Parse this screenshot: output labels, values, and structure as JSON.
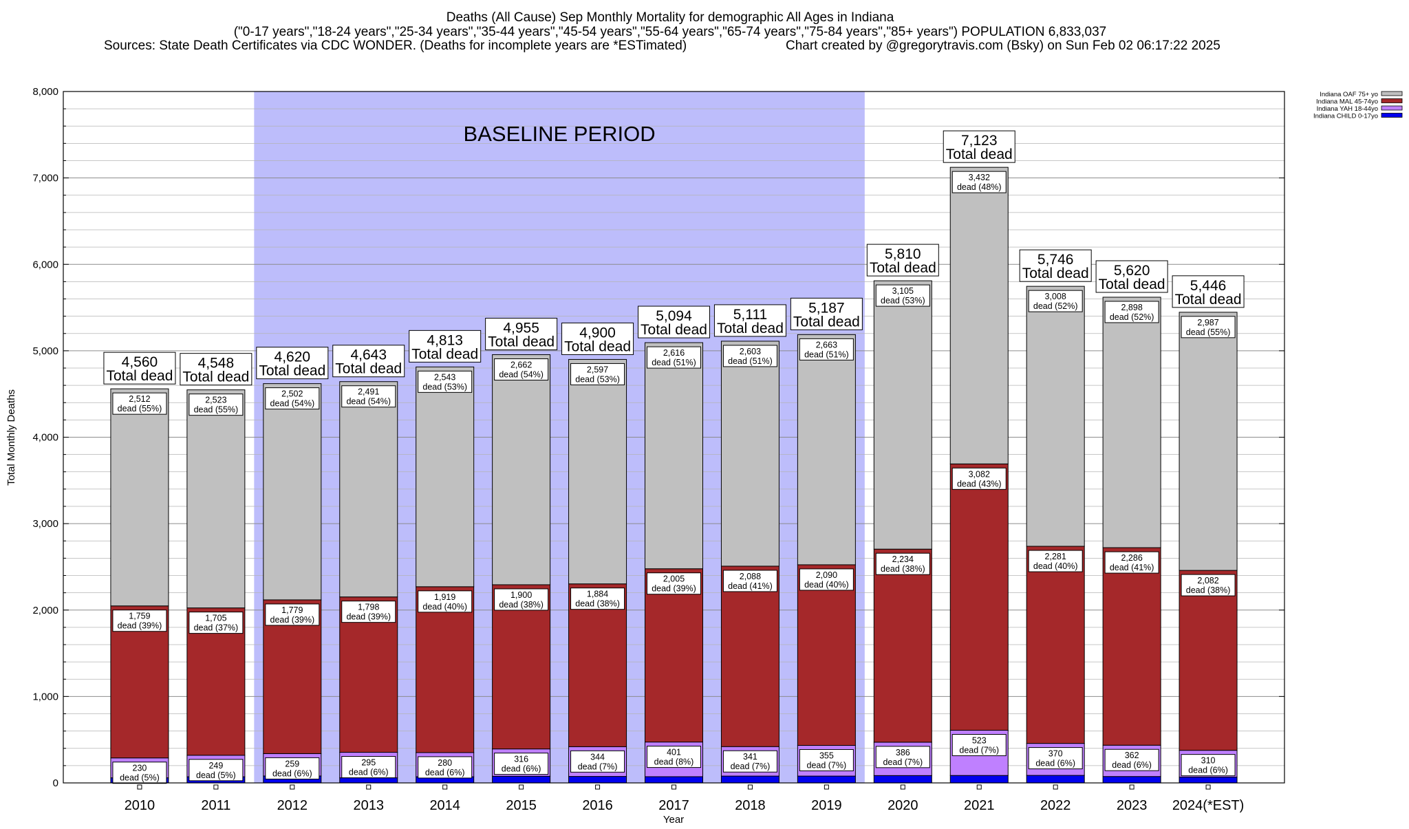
{
  "chart": {
    "title_lines": [
      "Deaths (All Cause) Sep Monthly Mortality for demographic All Ages in Indiana",
      "(\"0-17 years\",\"18-24 years\",\"25-34 years\",\"35-44 years\",\"45-54 years\",\"55-64 years\",\"65-74 years\",\"75-84 years\",\"85+ years\") POPULATION 6,833,037"
    ],
    "sources": "Sources: State Death Certificates via CDC WONDER. (Deaths for incomplete years are *ESTimated)",
    "credit": "Chart created by @gregorytravis.com (Bsky) on Sun Feb 02 06:17:22 2025",
    "baseline_label": "BASELINE PERIOD",
    "total_suffix": "Total dead",
    "dead_word": "dead"
  },
  "chart_data": {
    "type": "bar",
    "stacked": true,
    "xlabel": "Year",
    "ylabel": "Total Monthly Deaths",
    "ylim": [
      0,
      8000
    ],
    "yticks": [
      0,
      1000,
      2000,
      3000,
      4000,
      5000,
      6000,
      7000,
      8000
    ],
    "ytick_labels": [
      "0",
      "1,000",
      "2,000",
      "3,000",
      "4,000",
      "5,000",
      "6,000",
      "7,000",
      "8,000"
    ],
    "grid": true,
    "legend_position": "top-right",
    "baseline_period": [
      "2012",
      "2019"
    ],
    "categories": [
      "2010",
      "2011",
      "2012",
      "2013",
      "2014",
      "2015",
      "2016",
      "2017",
      "2018",
      "2019",
      "2020",
      "2021",
      "2022",
      "2023",
      "2024(*EST)"
    ],
    "totals": [
      4560,
      4548,
      4620,
      4643,
      4813,
      4955,
      4900,
      5094,
      5111,
      5187,
      5810,
      7123,
      5746,
      5620,
      5446
    ],
    "total_labels": [
      "4,560",
      "4,548",
      "4,620",
      "4,643",
      "4,813",
      "4,955",
      "4,900",
      "5,094",
      "5,111",
      "5,187",
      "5,810",
      "7,123",
      "5,746",
      "5,620",
      "5,446"
    ],
    "series": [
      {
        "name": "Indiana CHILD 0-17yo",
        "color": "#0000ee",
        "values": [
          59,
          71,
          80,
          59,
          71,
          77,
          75,
          72,
          79,
          79,
          85,
          86,
          87,
          74,
          67
        ]
      },
      {
        "name": "Indiana YAH 18-44yo",
        "color": "#bf80ff",
        "values": [
          230,
          249,
          259,
          295,
          280,
          316,
          344,
          401,
          341,
          355,
          386,
          523,
          370,
          362,
          310
        ],
        "labels": [
          "230",
          "249",
          "259",
          "295",
          "280",
          "316",
          "344",
          "401",
          "341",
          "355",
          "386",
          "523",
          "370",
          "362",
          "310"
        ],
        "pcts": [
          "(5%)",
          "(5%)",
          "(6%)",
          "(6%)",
          "(6%)",
          "(6%)",
          "(7%)",
          "(8%)",
          "(7%)",
          "(7%)",
          "(7%)",
          "(7%)",
          "(6%)",
          "(6%)",
          "(6%)"
        ]
      },
      {
        "name": "Indiana MAL 45-74yo",
        "color": "#a5282a",
        "values": [
          1759,
          1705,
          1779,
          1798,
          1919,
          1900,
          1884,
          2005,
          2088,
          2090,
          2234,
          3082,
          2281,
          2286,
          2082
        ],
        "labels": [
          "1,759",
          "1,705",
          "1,779",
          "1,798",
          "1,919",
          "1,900",
          "1,884",
          "2,005",
          "2,088",
          "2,090",
          "2,234",
          "3,082",
          "2,281",
          "2,286",
          "2,082"
        ],
        "pcts": [
          "(39%)",
          "(37%)",
          "(39%)",
          "(39%)",
          "(40%)",
          "(38%)",
          "(38%)",
          "(39%)",
          "(41%)",
          "(40%)",
          "(38%)",
          "(43%)",
          "(40%)",
          "(41%)",
          "(38%)"
        ]
      },
      {
        "name": "Indiana OAF 75+ yo",
        "color": "#c0c0c0",
        "values": [
          2512,
          2523,
          2502,
          2491,
          2543,
          2662,
          2597,
          2616,
          2603,
          2663,
          3105,
          3432,
          3008,
          2898,
          2987
        ],
        "labels": [
          "2,512",
          "2,523",
          "2,502",
          "2,491",
          "2,543",
          "2,662",
          "2,597",
          "2,616",
          "2,603",
          "2,663",
          "3,105",
          "3,432",
          "3,008",
          "2,898",
          "2,987"
        ],
        "pcts": [
          "(55%)",
          "(55%)",
          "(54%)",
          "(54%)",
          "(53%)",
          "(54%)",
          "(53%)",
          "(51%)",
          "(51%)",
          "(51%)",
          "(53%)",
          "(48%)",
          "(52%)",
          "(52%)",
          "(55%)"
        ]
      }
    ]
  }
}
